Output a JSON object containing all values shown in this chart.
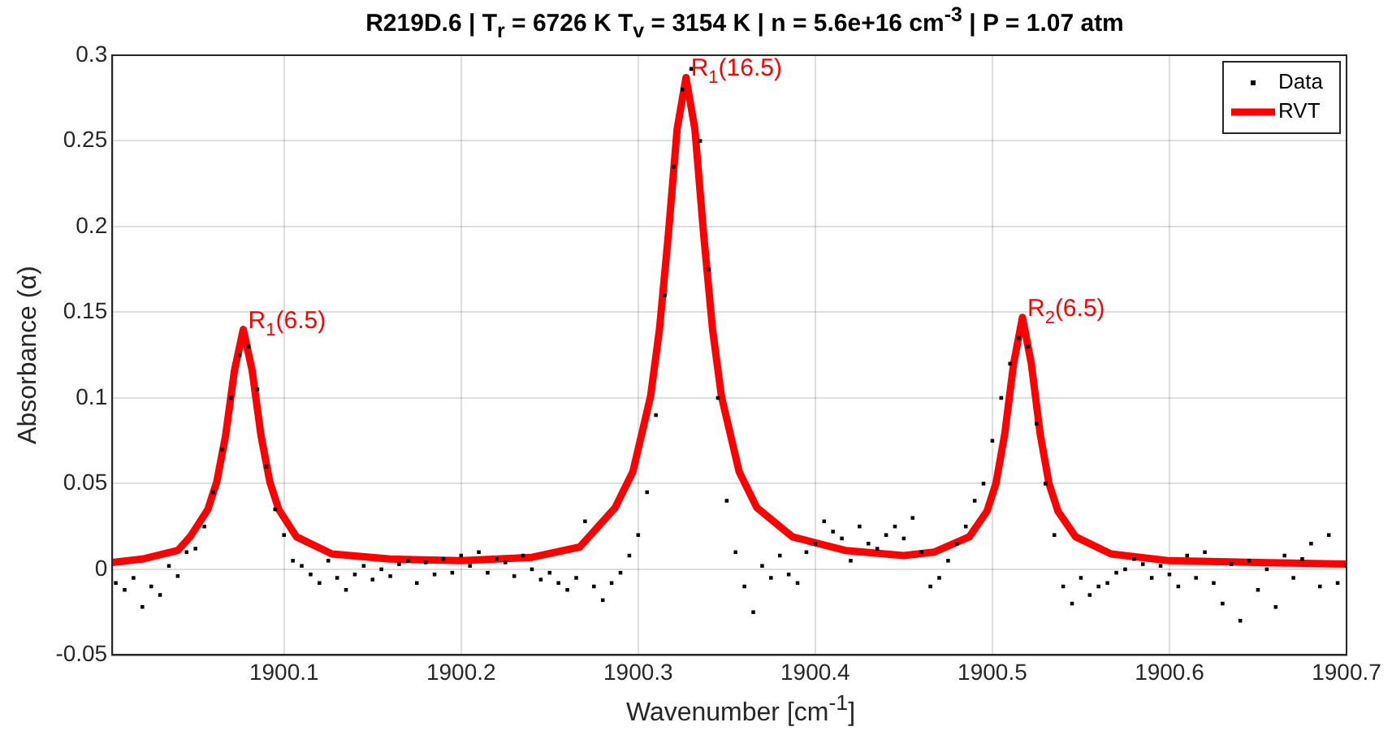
{
  "chart_data": {
    "type": "scatter",
    "title": "R219D.6 | T$_{r}$ = 6726 K T$_{v}$ = 3154 K | n = 5.6e+16 cm$^{-3}$ | P = 1.07 atm",
    "xlabel": "Wavenumber [cm$^{-1}$]",
    "ylabel": "Absorbance (α)",
    "xlim": [
      1900.003,
      1900.7
    ],
    "xticks": [
      1900.1,
      1900.2,
      1900.3,
      1900.4,
      1900.5,
      1900.6,
      1900.7
    ],
    "ylim": [
      -0.05,
      0.3
    ],
    "yticks": [
      -0.05,
      0,
      0.05,
      0.1,
      0.15,
      0.2,
      0.25,
      0.3
    ],
    "grid": true,
    "legend": "top right",
    "marker": "square",
    "line_style": "solid",
    "annotations": [
      {
        "text": "R$_{1}$(6.5)",
        "x": 1900.077,
        "y": 0.14
      },
      {
        "text": "R$_{1}$(16.5)",
        "x": 1900.327,
        "y": 0.287
      },
      {
        "text": "R$_{2}$(6.5)",
        "x": 1900.517,
        "y": 0.147
      }
    ],
    "series": [
      {
        "name": "Data",
        "color": "#000000",
        "x": [
          1900.005,
          1900.01,
          1900.015,
          1900.02,
          1900.025,
          1900.03,
          1900.035,
          1900.04,
          1900.045,
          1900.05,
          1900.055,
          1900.06,
          1900.065,
          1900.07,
          1900.075,
          1900.08,
          1900.085,
          1900.09,
          1900.095,
          1900.1,
          1900.105,
          1900.11,
          1900.115,
          1900.12,
          1900.125,
          1900.13,
          1900.135,
          1900.14,
          1900.145,
          1900.15,
          1900.155,
          1900.16,
          1900.165,
          1900.17,
          1900.175,
          1900.18,
          1900.185,
          1900.19,
          1900.195,
          1900.2,
          1900.205,
          1900.21,
          1900.215,
          1900.22,
          1900.225,
          1900.23,
          1900.235,
          1900.24,
          1900.245,
          1900.25,
          1900.255,
          1900.26,
          1900.265,
          1900.27,
          1900.275,
          1900.28,
          1900.285,
          1900.29,
          1900.295,
          1900.3,
          1900.305,
          1900.31,
          1900.315,
          1900.32,
          1900.325,
          1900.33,
          1900.335,
          1900.34,
          1900.345,
          1900.35,
          1900.355,
          1900.36,
          1900.365,
          1900.37,
          1900.375,
          1900.38,
          1900.385,
          1900.39,
          1900.395,
          1900.4,
          1900.405,
          1900.41,
          1900.415,
          1900.42,
          1900.425,
          1900.43,
          1900.435,
          1900.44,
          1900.445,
          1900.45,
          1900.455,
          1900.46,
          1900.465,
          1900.47,
          1900.475,
          1900.48,
          1900.485,
          1900.49,
          1900.495,
          1900.5,
          1900.505,
          1900.51,
          1900.515,
          1900.52,
          1900.525,
          1900.53,
          1900.535,
          1900.54,
          1900.545,
          1900.55,
          1900.555,
          1900.56,
          1900.565,
          1900.57,
          1900.575,
          1900.58,
          1900.585,
          1900.59,
          1900.595,
          1900.6,
          1900.605,
          1900.61,
          1900.615,
          1900.62,
          1900.625,
          1900.63,
          1900.635,
          1900.64,
          1900.645,
          1900.65,
          1900.655,
          1900.66,
          1900.665,
          1900.67,
          1900.675,
          1900.68,
          1900.685,
          1900.69,
          1900.695,
          1900.7
        ],
        "values": [
          -0.008,
          -0.012,
          -0.005,
          -0.022,
          -0.01,
          -0.015,
          0.002,
          -0.004,
          0.01,
          0.012,
          0.025,
          0.045,
          0.07,
          0.1,
          0.125,
          0.13,
          0.105,
          0.06,
          0.035,
          0.02,
          0.005,
          0.002,
          -0.003,
          -0.008,
          0.005,
          -0.005,
          -0.012,
          -0.003,
          0.002,
          -0.006,
          0,
          -0.004,
          0.003,
          0.005,
          -0.008,
          0.004,
          -0.003,
          0.006,
          -0.002,
          0.008,
          0.002,
          0.01,
          -0.002,
          0.006,
          0.004,
          -0.004,
          0.008,
          0,
          -0.006,
          -0.002,
          -0.008,
          -0.012,
          -0.005,
          0.028,
          -0.01,
          -0.018,
          -0.008,
          -0.002,
          0.008,
          0.02,
          0.045,
          0.09,
          0.16,
          0.235,
          0.28,
          0.292,
          0.25,
          0.175,
          0.1,
          0.04,
          0.01,
          -0.01,
          -0.025,
          0.002,
          -0.005,
          0.008,
          -0.003,
          -0.008,
          0.01,
          0.015,
          0.028,
          0.022,
          0.018,
          0.005,
          0.025,
          0.015,
          0.012,
          0.02,
          0.025,
          0.018,
          0.03,
          0.01,
          -0.01,
          -0.005,
          0.005,
          0.015,
          0.025,
          0.04,
          0.05,
          0.075,
          0.1,
          0.12,
          0.135,
          0.13,
          0.085,
          0.05,
          0.02,
          -0.01,
          -0.02,
          -0.005,
          -0.015,
          -0.01,
          -0.008,
          -0.002,
          0,
          0.006,
          0.003,
          -0.005,
          0.002,
          -0.003,
          -0.01,
          0.008,
          -0.005,
          0.01,
          -0.008,
          -0.02,
          0.003,
          -0.03,
          0.005,
          -0.012,
          0,
          -0.022,
          0.008,
          -0.005,
          0.006,
          0.015,
          -0.01,
          0.02,
          -0.008,
          0.002
        ]
      },
      {
        "name": "RVT",
        "type": "line",
        "marker": "none",
        "color": "#ff0000",
        "x": [
          1900.003,
          1900.02,
          1900.04,
          1900.047,
          1900.057,
          1900.062,
          1900.067,
          1900.072,
          1900.077,
          1900.082,
          1900.087,
          1900.092,
          1900.097,
          1900.107,
          1900.127,
          1900.16,
          1900.2,
          1900.24,
          1900.267,
          1900.287,
          1900.297,
          1900.307,
          1900.312,
          1900.317,
          1900.322,
          1900.327,
          1900.332,
          1900.337,
          1900.342,
          1900.347,
          1900.357,
          1900.367,
          1900.387,
          1900.417,
          1900.45,
          1900.467,
          1900.487,
          1900.497,
          1900.502,
          1900.507,
          1900.512,
          1900.517,
          1900.522,
          1900.527,
          1900.532,
          1900.537,
          1900.547,
          1900.567,
          1900.6,
          1900.65,
          1900.7
        ],
        "values": [
          0.004,
          0.006,
          0.011,
          0.019,
          0.035,
          0.051,
          0.078,
          0.116,
          0.14,
          0.116,
          0.078,
          0.051,
          0.035,
          0.019,
          0.009,
          0.006,
          0.005,
          0.007,
          0.013,
          0.036,
          0.057,
          0.101,
          0.14,
          0.195,
          0.257,
          0.287,
          0.257,
          0.195,
          0.14,
          0.101,
          0.057,
          0.036,
          0.019,
          0.011,
          0.008,
          0.01,
          0.019,
          0.034,
          0.05,
          0.079,
          0.12,
          0.147,
          0.12,
          0.079,
          0.05,
          0.034,
          0.019,
          0.009,
          0.005,
          0.004,
          0.003
        ]
      }
    ]
  }
}
